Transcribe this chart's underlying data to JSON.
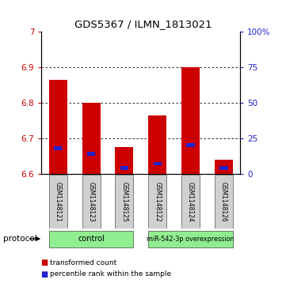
{
  "title": "GDS5367 / ILMN_1813021",
  "samples": [
    "GSM1148121",
    "GSM1148123",
    "GSM1148125",
    "GSM1148122",
    "GSM1148124",
    "GSM1148126"
  ],
  "transformed_counts": [
    6.865,
    6.8,
    6.675,
    6.763,
    6.9,
    6.64
  ],
  "percentile_ranks": [
    18,
    14,
    4,
    7,
    20,
    4
  ],
  "baseline": 6.6,
  "ylim_left": [
    6.6,
    7.0
  ],
  "ylim_right": [
    0,
    100
  ],
  "yticks_left": [
    6.6,
    6.7,
    6.8,
    6.9,
    7.0
  ],
  "yticks_right": [
    0,
    25,
    50,
    75,
    100
  ],
  "ytick_labels_left": [
    "6.6",
    "6.7",
    "6.8",
    "6.9",
    "7"
  ],
  "ytick_labels_right": [
    "0",
    "25",
    "50",
    "75",
    "100%"
  ],
  "grid_values": [
    6.7,
    6.8,
    6.9
  ],
  "bar_color": "#cc0000",
  "percentile_color": "#2222cc",
  "control_color": "#90ee90",
  "overexpression_color": "#90ee90",
  "sample_bg_color": "#d0d0d0",
  "groups": [
    {
      "label": "control",
      "indices": [
        0,
        1,
        2
      ]
    },
    {
      "label": "miR-542-3p overexpression",
      "indices": [
        3,
        4,
        5
      ]
    }
  ],
  "protocol_label": "protocol",
  "legend_items": [
    {
      "color": "#cc0000",
      "label": "transformed count"
    },
    {
      "color": "#2222cc",
      "label": "percentile rank within the sample"
    }
  ],
  "bar_width": 0.55,
  "left_tick_color": "#cc0000",
  "right_tick_color": "#2222cc"
}
